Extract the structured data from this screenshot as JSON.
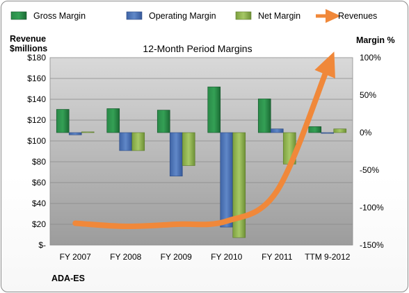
{
  "chart_data": {
    "type": "bar",
    "title": "12-Month Period Margins",
    "company": "ADA-ES",
    "left_axis_label_line1": "Revenue",
    "left_axis_label_line2": "$millions",
    "right_axis_label": "Margin %",
    "categories": [
      "FY 2007",
      "FY 2008",
      "FY 2009",
      "FY 2010",
      "FY 2011",
      "TTM 9-2012"
    ],
    "left_ylim": [
      0,
      180
    ],
    "left_ticks": [
      0,
      20,
      40,
      60,
      80,
      100,
      120,
      140,
      160,
      180
    ],
    "left_tick_labels": [
      "$-",
      "$20",
      "$40",
      "$60",
      "$80",
      "$100",
      "$120",
      "$140",
      "$160",
      "$180"
    ],
    "right_ylim": [
      -150,
      100
    ],
    "right_ticks": [
      -150,
      -100,
      -50,
      0,
      50,
      100
    ],
    "right_tick_labels": [
      "-150%",
      "-100%",
      "-50%",
      "0%",
      "50%",
      "100%"
    ],
    "series": [
      {
        "name": "Gross Margin",
        "kind": "bar",
        "axis": "right",
        "color": "#1e7a3c",
        "values": [
          31,
          32,
          30,
          61,
          45,
          8
        ]
      },
      {
        "name": "Operating Margin",
        "kind": "bar",
        "axis": "right",
        "color": "#4a6fae",
        "values": [
          -3,
          -24,
          -58,
          -126,
          5,
          -1
        ]
      },
      {
        "name": "Net Margin",
        "kind": "bar",
        "axis": "right",
        "color": "#8caf4d",
        "values": [
          1,
          -24,
          -44,
          -140,
          -42,
          5
        ]
      },
      {
        "name": "Revenues",
        "kind": "line",
        "axis": "left",
        "color": "#f0883a",
        "values": [
          21,
          18,
          20,
          23,
          52,
          170
        ]
      }
    ],
    "grid": true,
    "legend_position": "top"
  }
}
